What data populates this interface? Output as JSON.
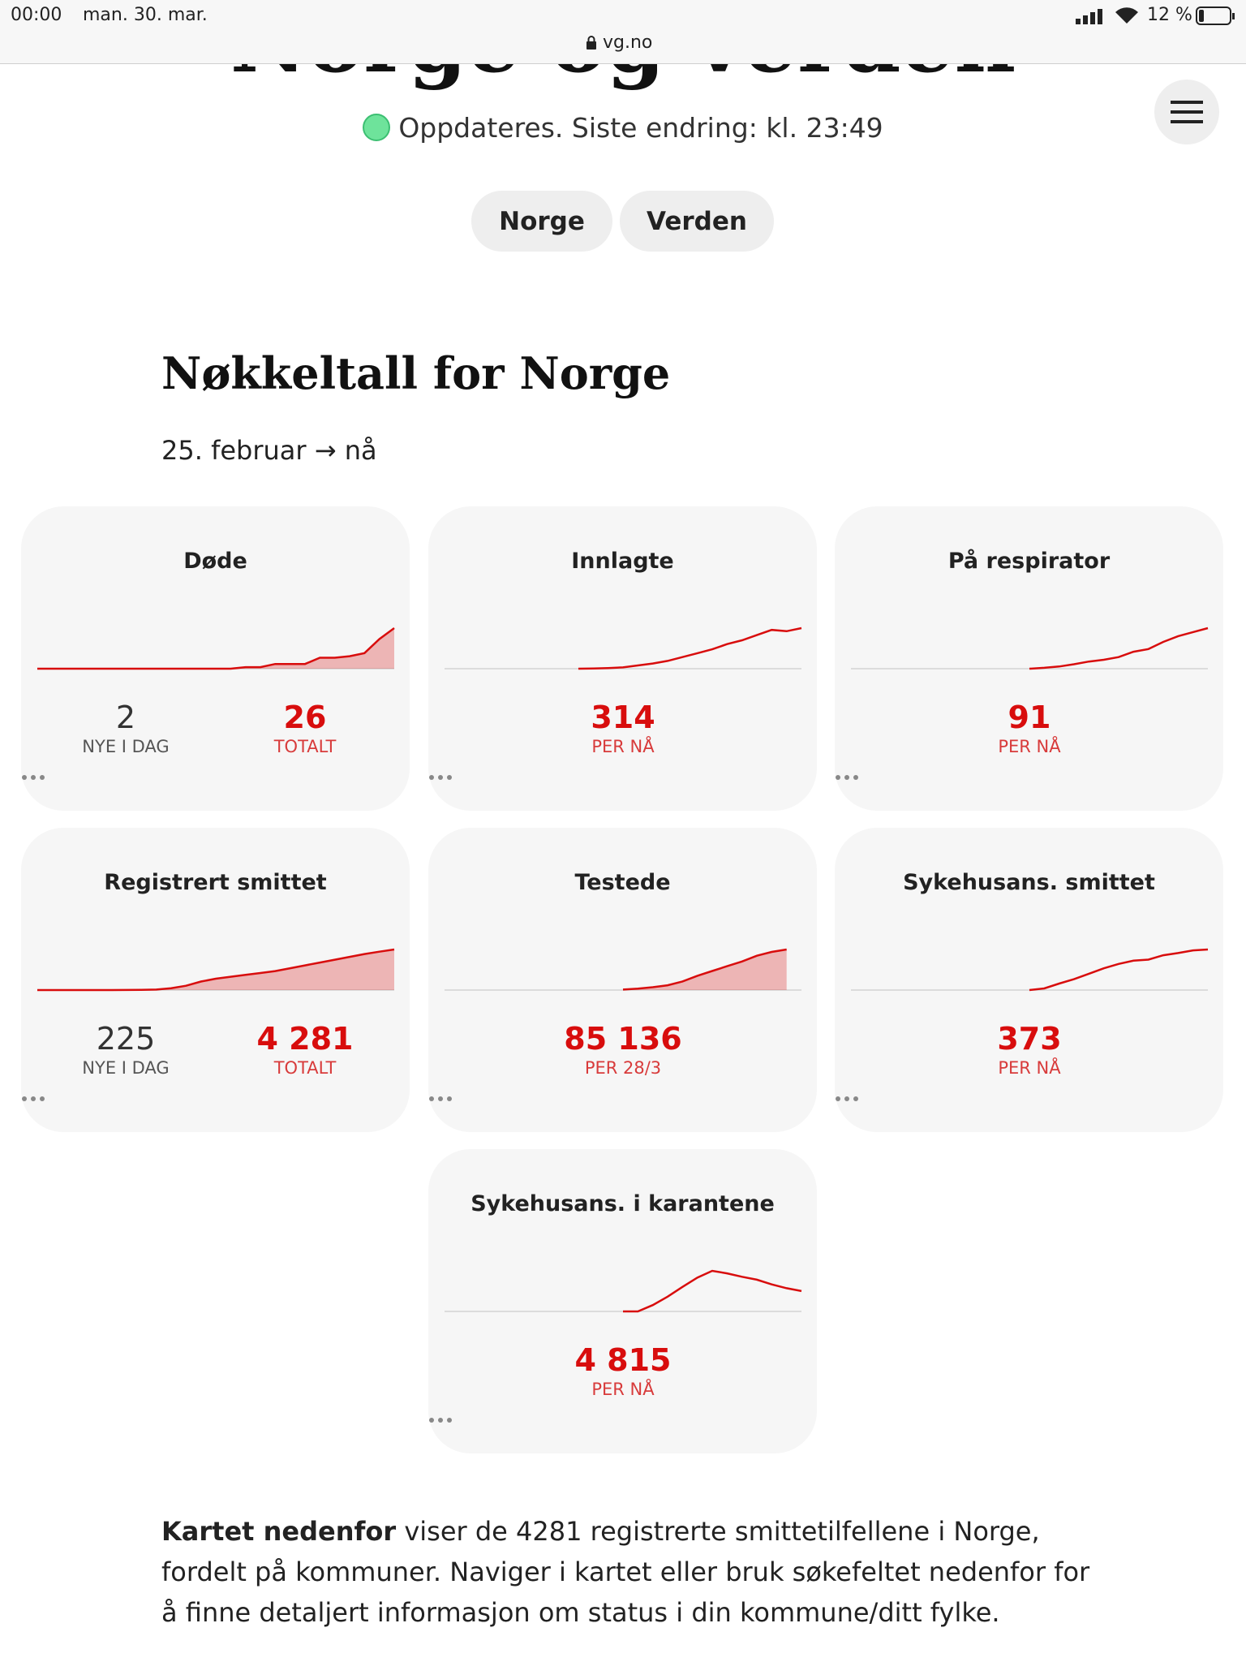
{
  "status_bar": {
    "time": "00:00",
    "date": "man. 30. mar.",
    "url": "vg.no",
    "battery": "12 %"
  },
  "header": {
    "title": "Norge og verden",
    "update_status": "Oppdateres. Siste endring: kl. 23:49",
    "tabs": [
      "Norge",
      "Verden"
    ]
  },
  "section": {
    "title": "Nøkkeltall for Norge",
    "period": "25. februar → nå"
  },
  "cards": [
    {
      "title": "Døde",
      "area": true,
      "sparkline": [
        0,
        0,
        0,
        0,
        0,
        0,
        0,
        0,
        0,
        0,
        0,
        0,
        0,
        0,
        1,
        1,
        3,
        3,
        3,
        7,
        7,
        8,
        10,
        19,
        26
      ],
      "stats": [
        {
          "value": "2",
          "label": "NYE I DAG",
          "highlight": false
        },
        {
          "value": "26",
          "label": "TOTALT",
          "highlight": true
        }
      ]
    },
    {
      "title": "Innlagte",
      "area": false,
      "sparkline": [
        null,
        null,
        null,
        null,
        null,
        null,
        null,
        null,
        null,
        0,
        2,
        5,
        10,
        25,
        40,
        60,
        90,
        120,
        150,
        190,
        220,
        260,
        300,
        290,
        314
      ],
      "stats": [
        {
          "value": "314",
          "label": "PER NÅ",
          "highlight": true
        }
      ]
    },
    {
      "title": "På respirator",
      "area": false,
      "sparkline": [
        null,
        null,
        null,
        null,
        null,
        null,
        null,
        null,
        null,
        null,
        null,
        null,
        0,
        2,
        5,
        10,
        16,
        20,
        26,
        38,
        44,
        60,
        73,
        82,
        91
      ],
      "stats": [
        {
          "value": "91",
          "label": "PER NÅ",
          "highlight": true
        }
      ]
    },
    {
      "title": "Registrert smittet",
      "area": true,
      "sparkline": [
        0,
        0,
        0,
        0,
        2,
        4,
        8,
        15,
        50,
        200,
        450,
        900,
        1200,
        1400,
        1600,
        1800,
        2000,
        2300,
        2600,
        2900,
        3200,
        3500,
        3800,
        4050,
        4281
      ],
      "stats": [
        {
          "value": "225",
          "label": "NYE I DAG",
          "highlight": false
        },
        {
          "value": "4 281",
          "label": "TOTALT",
          "highlight": true
        }
      ]
    },
    {
      "title": "Testede",
      "area": true,
      "sparkline": [
        null,
        null,
        null,
        null,
        null,
        null,
        null,
        null,
        null,
        null,
        null,
        null,
        1000,
        3000,
        6000,
        10000,
        18000,
        30000,
        40000,
        50000,
        60000,
        72000,
        80000,
        85136,
        null
      ],
      "stats": [
        {
          "value": "85 136",
          "label": "PER 28/3",
          "highlight": true
        }
      ]
    },
    {
      "title": "Sykehusans. smittet",
      "area": false,
      "sparkline": [
        null,
        null,
        null,
        null,
        null,
        null,
        null,
        null,
        null,
        null,
        null,
        null,
        0,
        15,
        60,
        100,
        150,
        200,
        240,
        270,
        280,
        320,
        340,
        365,
        373
      ],
      "stats": [
        {
          "value": "373",
          "label": "PER NÅ",
          "highlight": true
        }
      ]
    },
    {
      "title": "Sykehusans. i karantene",
      "area": false,
      "sparkline": [
        null,
        null,
        null,
        null,
        null,
        null,
        null,
        null,
        null,
        null,
        null,
        null,
        0,
        0,
        1500,
        3500,
        5800,
        8000,
        9600,
        9000,
        8200,
        7500,
        6400,
        5500,
        4815
      ],
      "stats": [
        {
          "value": "4 815",
          "label": "PER NÅ",
          "highlight": true
        }
      ]
    }
  ],
  "paragraph": {
    "lead": "Kartet nedenfor",
    "text": " viser de 4281 registrerte smittetilfellene i Norge, fordelt på kommuner. Naviger i kartet eller bruk søkefeltet nedenfor for å finne detaljert informasjon om status i din kommune/ditt fylke."
  }
}
